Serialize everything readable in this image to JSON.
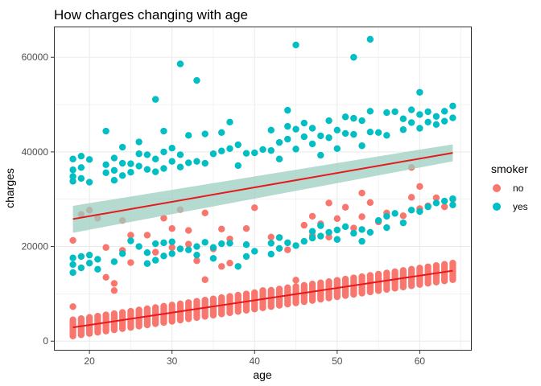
{
  "chart_data": {
    "type": "scatter",
    "title": "How charges changing with age",
    "xlabel": "age",
    "ylabel": "charges",
    "xlim": [
      15.7,
      66.3
    ],
    "ylim": [
      -2000,
      66500
    ],
    "x_ticks": [
      20,
      30,
      40,
      50,
      60
    ],
    "y_ticks": [
      0,
      20000,
      40000,
      60000
    ],
    "grid": true,
    "legend": {
      "title": "smoker",
      "placement": "right"
    },
    "colors": {
      "no": "#F8766D",
      "yes": "#00BFC4",
      "trend": "#E41A1C",
      "band": "#9CCEC0",
      "panel_border": "#333333",
      "grid": "#EBEBEB"
    },
    "series": [
      {
        "name": "no",
        "bands": [
          {
            "x": [
              18,
              64
            ],
            "y_low": [
              1100,
              13000
            ],
            "y_high": [
              4500,
              16500
            ]
          }
        ],
        "points": [
          [
            18,
            21300
          ],
          [
            18,
            7300
          ],
          [
            19,
            26800
          ],
          [
            20,
            27700
          ],
          [
            21,
            26000
          ],
          [
            22,
            19800
          ],
          [
            22,
            13500
          ],
          [
            23,
            12200
          ],
          [
            23,
            10700
          ],
          [
            24,
            19200
          ],
          [
            24,
            25500
          ],
          [
            25,
            22400
          ],
          [
            25,
            16600
          ],
          [
            27,
            22400
          ],
          [
            28,
            18800
          ],
          [
            29,
            26000
          ],
          [
            30,
            23800
          ],
          [
            30,
            19800
          ],
          [
            31,
            27800
          ],
          [
            32,
            20500
          ],
          [
            32,
            23400
          ],
          [
            33,
            17000
          ],
          [
            34,
            27100
          ],
          [
            34,
            13000
          ],
          [
            35,
            19500
          ],
          [
            36,
            23700
          ],
          [
            36,
            15800
          ],
          [
            37,
            21600
          ],
          [
            37,
            16500
          ],
          [
            39,
            23800
          ],
          [
            40,
            28200
          ],
          [
            41,
            10700
          ],
          [
            42,
            22000
          ],
          [
            43,
            21900
          ],
          [
            44,
            19300
          ],
          [
            45,
            12900
          ],
          [
            46,
            24500
          ],
          [
            47,
            22300
          ],
          [
            47,
            26400
          ],
          [
            48,
            24800
          ],
          [
            49,
            29200
          ],
          [
            49,
            22000
          ],
          [
            50,
            25900
          ],
          [
            51,
            28300
          ],
          [
            52,
            23900
          ],
          [
            53,
            26300
          ],
          [
            53,
            31300
          ],
          [
            54,
            29300
          ],
          [
            55,
            25200
          ],
          [
            56,
            27100
          ],
          [
            58,
            26500
          ],
          [
            59,
            30400
          ],
          [
            59,
            36700
          ],
          [
            60,
            28000
          ],
          [
            60,
            32700
          ],
          [
            61,
            28600
          ],
          [
            62,
            30300
          ],
          [
            63,
            28400
          ],
          [
            64,
            30000
          ]
        ]
      },
      {
        "name": "yes",
        "points": [
          [
            18,
            38500
          ],
          [
            18,
            36200
          ],
          [
            18,
            34800
          ],
          [
            18,
            33800
          ],
          [
            19,
            39100
          ],
          [
            19,
            36700
          ],
          [
            19,
            34400
          ],
          [
            20,
            38400
          ],
          [
            20,
            33600
          ],
          [
            18,
            17600
          ],
          [
            18,
            16200
          ],
          [
            18,
            14500
          ],
          [
            19,
            17900
          ],
          [
            19,
            15500
          ],
          [
            20,
            18200
          ],
          [
            20,
            16500
          ],
          [
            21,
            17300
          ],
          [
            21,
            15200
          ],
          [
            22,
            44400
          ],
          [
            22,
            37300
          ],
          [
            22,
            35600
          ],
          [
            23,
            38700
          ],
          [
            23,
            36100
          ],
          [
            23,
            34000
          ],
          [
            24,
            41000
          ],
          [
            24,
            37600
          ],
          [
            24,
            35000
          ],
          [
            23,
            16800
          ],
          [
            24,
            18500
          ],
          [
            25,
            37500
          ],
          [
            25,
            35700
          ],
          [
            26,
            42100
          ],
          [
            26,
            39600
          ],
          [
            26,
            37000
          ],
          [
            27,
            39400
          ],
          [
            27,
            36300
          ],
          [
            28,
            51100
          ],
          [
            28,
            38500
          ],
          [
            28,
            35800
          ],
          [
            29,
            44400
          ],
          [
            29,
            40000
          ],
          [
            29,
            36500
          ],
          [
            30,
            40800
          ],
          [
            30,
            38000
          ],
          [
            31,
            58600
          ],
          [
            31,
            39400
          ],
          [
            31,
            36800
          ],
          [
            32,
            43500
          ],
          [
            32,
            37700
          ],
          [
            33,
            55100
          ],
          [
            33,
            38000
          ],
          [
            34,
            43800
          ],
          [
            34,
            37600
          ],
          [
            35,
            39600
          ],
          [
            36,
            44100
          ],
          [
            36,
            40200
          ],
          [
            37,
            46300
          ],
          [
            37,
            40700
          ],
          [
            38,
            41500
          ],
          [
            38,
            37100
          ],
          [
            39,
            39700
          ],
          [
            40,
            39800
          ],
          [
            41,
            40500
          ],
          [
            42,
            44600
          ],
          [
            42,
            40300
          ],
          [
            43,
            42000
          ],
          [
            43,
            38500
          ],
          [
            44,
            48800
          ],
          [
            44,
            45400
          ],
          [
            44,
            42700
          ],
          [
            45,
            62600
          ],
          [
            45,
            44800
          ],
          [
            45,
            40600
          ],
          [
            46,
            46100
          ],
          [
            46,
            43200
          ],
          [
            47,
            45000
          ],
          [
            47,
            41700
          ],
          [
            48,
            43400
          ],
          [
            48,
            39300
          ],
          [
            49,
            46600
          ],
          [
            49,
            43000
          ],
          [
            50,
            44600
          ],
          [
            50,
            40700
          ],
          [
            51,
            47400
          ],
          [
            51,
            43900
          ],
          [
            52,
            60000
          ],
          [
            52,
            47100
          ],
          [
            52,
            43700
          ],
          [
            53,
            46600
          ],
          [
            53,
            41300
          ],
          [
            54,
            63800
          ],
          [
            54,
            48600
          ],
          [
            54,
            44200
          ],
          [
            55,
            44100
          ],
          [
            56,
            48300
          ],
          [
            56,
            43500
          ],
          [
            57,
            48500
          ],
          [
            58,
            47000
          ],
          [
            58,
            44700
          ],
          [
            59,
            48900
          ],
          [
            59,
            46200
          ],
          [
            60,
            52600
          ],
          [
            60,
            47900
          ],
          [
            60,
            45000
          ],
          [
            61,
            48500
          ],
          [
            61,
            46300
          ],
          [
            62,
            47500
          ],
          [
            62,
            45800
          ],
          [
            63,
            48600
          ],
          [
            63,
            46500
          ],
          [
            64,
            49700
          ],
          [
            64,
            47200
          ],
          [
            25,
            21200
          ],
          [
            26,
            20000
          ],
          [
            27,
            18700
          ],
          [
            27,
            16400
          ],
          [
            28,
            20600
          ],
          [
            28,
            17100
          ],
          [
            29,
            20800
          ],
          [
            29,
            18000
          ],
          [
            30,
            21000
          ],
          [
            30,
            18500
          ],
          [
            31,
            19500
          ],
          [
            32,
            19300
          ],
          [
            33,
            20000
          ],
          [
            33,
            18200
          ],
          [
            34,
            20900
          ],
          [
            35,
            19800
          ],
          [
            35,
            17500
          ],
          [
            36,
            20600
          ],
          [
            37,
            20700
          ],
          [
            38,
            15800
          ],
          [
            39,
            20400
          ],
          [
            39,
            17900
          ],
          [
            40,
            19000
          ],
          [
            42,
            20700
          ],
          [
            42,
            18400
          ],
          [
            43,
            21900
          ],
          [
            43,
            19600
          ],
          [
            44,
            20800
          ],
          [
            45,
            20200
          ],
          [
            46,
            21100
          ],
          [
            47,
            21800
          ],
          [
            47,
            23200
          ],
          [
            48,
            22200
          ],
          [
            48,
            24400
          ],
          [
            49,
            23000
          ],
          [
            50,
            23500
          ],
          [
            50,
            21500
          ],
          [
            51,
            24200
          ],
          [
            52,
            22800
          ],
          [
            53,
            23600
          ],
          [
            53,
            21100
          ],
          [
            54,
            23000
          ],
          [
            55,
            25500
          ],
          [
            56,
            26400
          ],
          [
            56,
            24000
          ],
          [
            57,
            27000
          ],
          [
            58,
            25000
          ],
          [
            59,
            27700
          ],
          [
            60,
            27400
          ],
          [
            61,
            28400
          ],
          [
            62,
            29200
          ],
          [
            63,
            29600
          ],
          [
            64,
            30100
          ],
          [
            64,
            28800
          ]
        ]
      }
    ],
    "smooth": {
      "type": "lm",
      "x": [
        18,
        64
      ],
      "fit": [
        {
          "y": [
            2900,
            14900
          ]
        },
        {
          "y": [
            25800,
            39800
          ],
          "ci_low": [
            22900,
            38000
          ],
          "ci_high": [
            28600,
            41600
          ]
        }
      ]
    }
  }
}
